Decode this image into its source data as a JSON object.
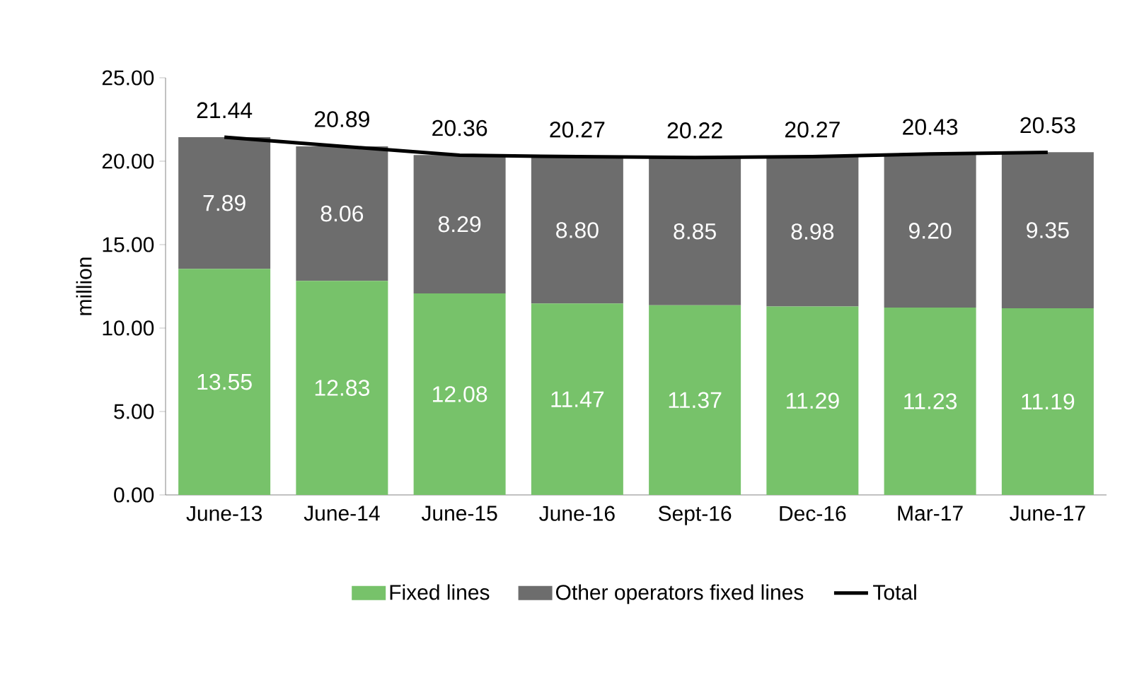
{
  "chart_data": {
    "type": "bar",
    "stacked": true,
    "ylabel": "million",
    "categories": [
      "June-13",
      "June-14",
      "June-15",
      "June-16",
      "Sept-16",
      "Dec-16",
      "Mar-17",
      "June-17"
    ],
    "series": [
      {
        "name": "Fixed lines",
        "color": "#77c26a",
        "values": [
          13.55,
          12.83,
          12.08,
          11.47,
          11.37,
          11.29,
          11.23,
          11.19
        ],
        "value_labels": [
          "13.55",
          "12.83",
          "12.08",
          "11.47",
          "11.37",
          "11.29",
          "11.23",
          "11.19"
        ]
      },
      {
        "name": "Other operators fixed lines",
        "color": "#6d6d6d",
        "values": [
          7.89,
          8.06,
          8.29,
          8.8,
          8.85,
          8.98,
          9.2,
          9.35
        ],
        "value_labels": [
          "7.89",
          "8.06",
          "8.29",
          "8.80",
          "8.85",
          "8.98",
          "9.20",
          "9.35"
        ]
      },
      {
        "name": "Total",
        "type": "line",
        "color": "#000000",
        "values": [
          21.44,
          20.89,
          20.36,
          20.27,
          20.22,
          20.27,
          20.43,
          20.53
        ],
        "value_labels": [
          "21.44",
          "20.89",
          "20.36",
          "20.27",
          "20.22",
          "20.27",
          "20.43",
          "20.53"
        ]
      }
    ],
    "ylim": [
      0,
      25
    ],
    "yticks": [
      {
        "value": 0,
        "label": "0.00"
      },
      {
        "value": 5,
        "label": "5.00"
      },
      {
        "value": 10,
        "label": "10.00"
      },
      {
        "value": 15,
        "label": "15.00"
      },
      {
        "value": 20,
        "label": "20.00"
      },
      {
        "value": 25,
        "label": "25.00"
      }
    ],
    "legend": "bottom"
  }
}
